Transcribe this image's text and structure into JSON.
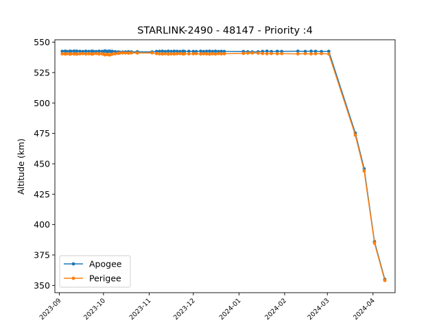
{
  "chart_data": {
    "type": "line",
    "title": "STARLINK-2490 - 48147 - Priority :4",
    "xlabel": "",
    "ylabel": "Altitude (km)",
    "xlim": [
      "2023-08-29",
      "2024-04-16"
    ],
    "ylim": [
      344,
      552
    ],
    "y_ticks": [
      350,
      375,
      400,
      425,
      450,
      475,
      500,
      525,
      550
    ],
    "x_ticks": [
      "2023-09",
      "2023-10",
      "2023-11",
      "2023-12",
      "2024-01",
      "2024-02",
      "2024-03",
      "2024-04"
    ],
    "grid": false,
    "legend": "lower left",
    "series": [
      {
        "name": "Apogee",
        "color": "#1f77b4",
        "points": [
          [
            "2023-09-03",
            542.5
          ],
          [
            "2023-09-05",
            542.6
          ],
          [
            "2023-09-06",
            542.4
          ],
          [
            "2023-09-08",
            542.6
          ],
          [
            "2023-09-09",
            542.5
          ],
          [
            "2023-09-11",
            542.7
          ],
          [
            "2023-09-12",
            542.4
          ],
          [
            "2023-09-13",
            542.6
          ],
          [
            "2023-09-15",
            542.5
          ],
          [
            "2023-09-17",
            542.3
          ],
          [
            "2023-09-19",
            542.6
          ],
          [
            "2023-09-21",
            542.4
          ],
          [
            "2023-09-23",
            542.6
          ],
          [
            "2023-09-24",
            542.5
          ],
          [
            "2023-09-26",
            542.3
          ],
          [
            "2023-09-28",
            542.6
          ],
          [
            "2023-09-30",
            542.4
          ],
          [
            "2023-10-01",
            542.3
          ],
          [
            "2023-10-02",
            542.8
          ],
          [
            "2023-10-03",
            542.5
          ],
          [
            "2023-10-04",
            542.4
          ],
          [
            "2023-10-05",
            542.7
          ],
          [
            "2023-10-06",
            542.3
          ],
          [
            "2023-10-07",
            542.5
          ],
          [
            "2023-10-09",
            542.2
          ],
          [
            "2023-10-11",
            542.0
          ],
          [
            "2023-10-12",
            541.8
          ],
          [
            "2023-10-14",
            541.9
          ],
          [
            "2023-10-16",
            542.0
          ],
          [
            "2023-10-18",
            542.1
          ],
          [
            "2023-10-20",
            542.0
          ],
          [
            "2023-10-24",
            542.1
          ],
          [
            "2023-11-03",
            542.0
          ],
          [
            "2023-11-06",
            542.4
          ],
          [
            "2023-11-08",
            542.5
          ],
          [
            "2023-11-10",
            542.6
          ],
          [
            "2023-11-12",
            542.3
          ],
          [
            "2023-11-14",
            542.6
          ],
          [
            "2023-11-16",
            542.4
          ],
          [
            "2023-11-18",
            542.6
          ],
          [
            "2023-11-20",
            542.5
          ],
          [
            "2023-11-22",
            542.3
          ],
          [
            "2023-11-24",
            542.6
          ],
          [
            "2023-11-25",
            542.4
          ],
          [
            "2023-11-28",
            542.5
          ],
          [
            "2023-12-01",
            542.4
          ],
          [
            "2023-12-03",
            542.3
          ],
          [
            "2023-12-06",
            542.6
          ],
          [
            "2023-12-08",
            542.3
          ],
          [
            "2023-12-10",
            542.5
          ],
          [
            "2023-12-12",
            542.6
          ],
          [
            "2023-12-14",
            542.4
          ],
          [
            "2023-12-16",
            542.6
          ],
          [
            "2023-12-18",
            542.3
          ],
          [
            "2023-12-20",
            542.5
          ],
          [
            "2023-12-22",
            542.4
          ],
          [
            "2024-01-04",
            542.3
          ],
          [
            "2024-01-07",
            542.1
          ],
          [
            "2024-01-10",
            542.0
          ],
          [
            "2024-01-14",
            542.1
          ],
          [
            "2024-01-17",
            542.4
          ],
          [
            "2024-01-20",
            542.6
          ],
          [
            "2024-01-23",
            542.3
          ],
          [
            "2024-01-27",
            542.5
          ],
          [
            "2024-01-30",
            542.4
          ],
          [
            "2024-02-10",
            542.6
          ],
          [
            "2024-02-15",
            542.4
          ],
          [
            "2024-02-19",
            542.6
          ],
          [
            "2024-02-22",
            542.5
          ],
          [
            "2024-02-26",
            542.3
          ],
          [
            "2024-03-02",
            542.5
          ],
          [
            "2024-03-20",
            475.2
          ],
          [
            "2024-03-26",
            445.9
          ],
          [
            "2024-04-02",
            386.0
          ],
          [
            "2024-04-09",
            355.0
          ]
        ]
      },
      {
        "name": "Perigee",
        "color": "#ff7f0e",
        "points": [
          [
            "2023-09-03",
            540.4
          ],
          [
            "2023-09-05",
            540.3
          ],
          [
            "2023-09-06",
            540.5
          ],
          [
            "2023-09-08",
            540.2
          ],
          [
            "2023-09-09",
            540.4
          ],
          [
            "2023-09-11",
            540.3
          ],
          [
            "2023-09-12",
            540.5
          ],
          [
            "2023-09-13",
            540.2
          ],
          [
            "2023-09-15",
            540.4
          ],
          [
            "2023-09-17",
            540.6
          ],
          [
            "2023-09-19",
            540.3
          ],
          [
            "2023-09-21",
            540.5
          ],
          [
            "2023-09-23",
            540.2
          ],
          [
            "2023-09-24",
            540.4
          ],
          [
            "2023-09-26",
            540.6
          ],
          [
            "2023-09-28",
            540.3
          ],
          [
            "2023-09-30",
            540.5
          ],
          [
            "2023-10-01",
            540.2
          ],
          [
            "2023-10-02",
            539.6
          ],
          [
            "2023-10-03",
            540.0
          ],
          [
            "2023-10-04",
            539.8
          ],
          [
            "2023-10-05",
            539.5
          ],
          [
            "2023-10-06",
            539.9
          ],
          [
            "2023-10-07",
            540.2
          ],
          [
            "2023-10-09",
            540.5
          ],
          [
            "2023-10-11",
            540.8
          ],
          [
            "2023-10-12",
            541.0
          ],
          [
            "2023-10-14",
            541.2
          ],
          [
            "2023-10-16",
            541.1
          ],
          [
            "2023-10-18",
            541.0
          ],
          [
            "2023-10-20",
            541.2
          ],
          [
            "2023-10-24",
            541.1
          ],
          [
            "2023-11-03",
            541.2
          ],
          [
            "2023-11-06",
            540.6
          ],
          [
            "2023-11-08",
            540.4
          ],
          [
            "2023-11-10",
            540.3
          ],
          [
            "2023-11-12",
            540.5
          ],
          [
            "2023-11-14",
            540.2
          ],
          [
            "2023-11-16",
            540.4
          ],
          [
            "2023-11-18",
            540.3
          ],
          [
            "2023-11-20",
            540.5
          ],
          [
            "2023-11-22",
            540.6
          ],
          [
            "2023-11-24",
            540.3
          ],
          [
            "2023-11-25",
            540.5
          ],
          [
            "2023-11-28",
            540.4
          ],
          [
            "2023-12-01",
            540.5
          ],
          [
            "2023-12-03",
            540.6
          ],
          [
            "2023-12-06",
            540.3
          ],
          [
            "2023-12-08",
            540.5
          ],
          [
            "2023-12-10",
            540.4
          ],
          [
            "2023-12-12",
            540.2
          ],
          [
            "2023-12-14",
            540.5
          ],
          [
            "2023-12-16",
            540.3
          ],
          [
            "2023-12-18",
            540.6
          ],
          [
            "2023-12-20",
            540.4
          ],
          [
            "2023-12-22",
            540.5
          ],
          [
            "2024-01-04",
            540.8
          ],
          [
            "2024-01-07",
            541.0
          ],
          [
            "2024-01-10",
            541.1
          ],
          [
            "2024-01-14",
            541.0
          ],
          [
            "2024-01-17",
            540.7
          ],
          [
            "2024-01-20",
            540.5
          ],
          [
            "2024-01-23",
            540.7
          ],
          [
            "2024-01-27",
            540.5
          ],
          [
            "2024-01-30",
            540.6
          ],
          [
            "2024-02-10",
            540.4
          ],
          [
            "2024-02-15",
            540.6
          ],
          [
            "2024-02-19",
            540.4
          ],
          [
            "2024-02-22",
            540.5
          ],
          [
            "2024-02-26",
            540.6
          ],
          [
            "2024-03-02",
            540.3
          ],
          [
            "2024-03-20",
            473.5
          ],
          [
            "2024-03-26",
            444.0
          ],
          [
            "2024-04-02",
            384.8
          ],
          [
            "2024-04-09",
            354.0
          ]
        ]
      }
    ]
  }
}
